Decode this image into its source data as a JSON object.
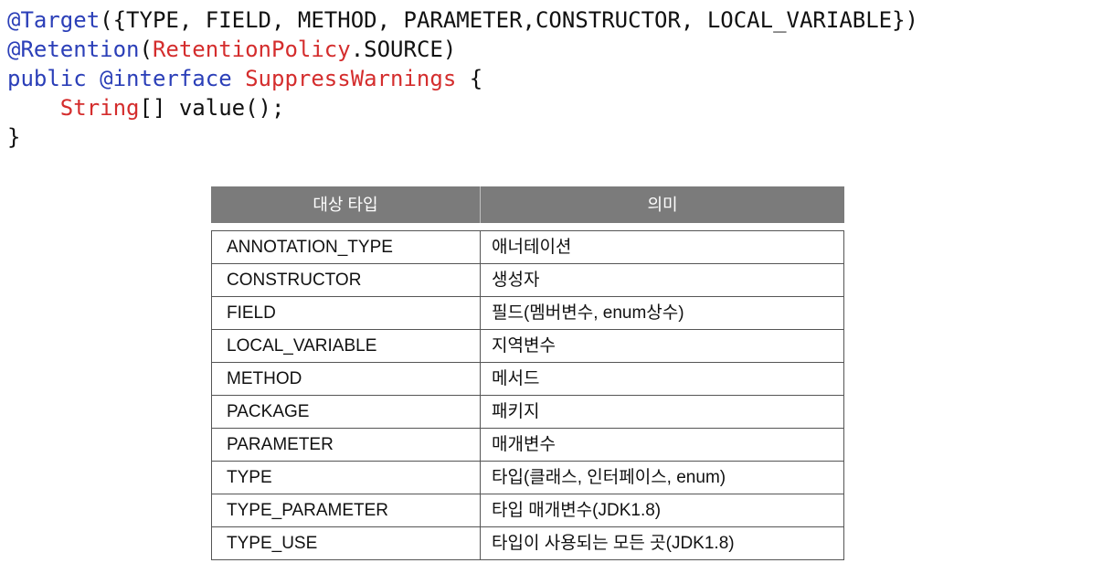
{
  "code": {
    "lines": [
      [
        {
          "text": "@Target",
          "color": "#2b3fb8"
        },
        {
          "text": "({TYPE, FIELD, METHOD, PARAMETER,CONSTRUCTOR, LOCAL_VARIABLE})",
          "color": "#111111"
        }
      ],
      [
        {
          "text": "@Retention",
          "color": "#2b3fb8"
        },
        {
          "text": "(",
          "color": "#111111"
        },
        {
          "text": "RetentionPolicy",
          "color": "#d42d2d"
        },
        {
          "text": ".SOURCE)",
          "color": "#111111"
        }
      ],
      [
        {
          "text": "public @interface ",
          "color": "#2b3fb8"
        },
        {
          "text": "SuppressWarnings",
          "color": "#d42d2d"
        },
        {
          "text": " {",
          "color": "#111111"
        }
      ],
      [
        {
          "text": "    ",
          "color": "#111111"
        },
        {
          "text": "String",
          "color": "#d42d2d"
        },
        {
          "text": "[] value();",
          "color": "#111111"
        }
      ],
      [
        {
          "text": "}",
          "color": "#111111"
        }
      ]
    ]
  },
  "table": {
    "headers": [
      "대상 타입",
      "의미"
    ],
    "rows": [
      [
        "ANNOTATION_TYPE",
        "애너테이션"
      ],
      [
        "CONSTRUCTOR",
        "생성자"
      ],
      [
        "FIELD",
        "필드(멤버변수, enum상수)"
      ],
      [
        "LOCAL_VARIABLE",
        "지역변수"
      ],
      [
        "METHOD",
        "메서드"
      ],
      [
        "PACKAGE",
        "패키지"
      ],
      [
        "PARAMETER",
        "매개변수"
      ],
      [
        "TYPE",
        "타입(클래스, 인터페이스, enum)"
      ],
      [
        "TYPE_PARAMETER",
        "타입 매개변수(JDK1.8)"
      ],
      [
        "TYPE_USE",
        "타입이 사용되는 모든 곳(JDK1.8)"
      ]
    ]
  },
  "colors": {
    "keyword": "#2b3fb8",
    "type": "#d42d2d",
    "header_bg": "#7b7b7b"
  }
}
